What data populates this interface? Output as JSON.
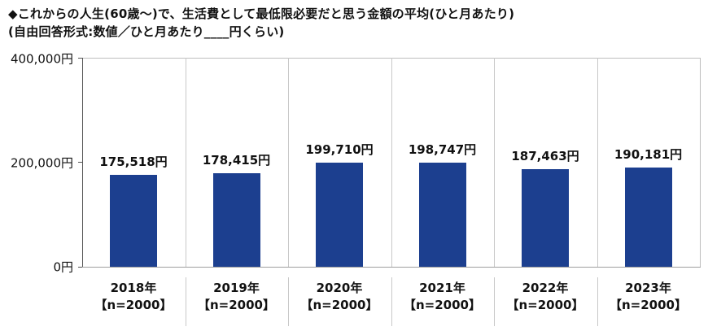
{
  "title_line1": "◆これからの人生(60歳～)で、生活費として最低限必要だと思う金額の平均(ひと月あたり)",
  "title_line2": "(自由回答形式:数値／ひと月あたり____円くらい)",
  "y_ticks": [
    "400,000円",
    "200,000円",
    "0円"
  ],
  "bar_color": "#1c3f8f",
  "categories": [
    {
      "year": "2018年",
      "n": "【n=2000】",
      "value_label": "175,518円",
      "value": 175518
    },
    {
      "year": "2019年",
      "n": "【n=2000】",
      "value_label": "178,415円",
      "value": 178415
    },
    {
      "year": "2020年",
      "n": "【n=2000】",
      "value_label": "199,710円",
      "value": 199710
    },
    {
      "year": "2021年",
      "n": "【n=2000】",
      "value_label": "198,747円",
      "value": 198747
    },
    {
      "year": "2022年",
      "n": "【n=2000】",
      "value_label": "187,463円",
      "value": 187463
    },
    {
      "year": "2023年",
      "n": "【n=2000】",
      "value_label": "190,181円",
      "value": 190181
    }
  ],
  "chart_data": {
    "type": "bar",
    "title": "◆これからの人生(60歳～)で、生活費として最低限必要だと思う金額の平均(ひと月あたり)",
    "subtitle": "(自由回答形式:数値／ひと月あたり____円くらい)",
    "categories": [
      "2018年【n=2000】",
      "2019年【n=2000】",
      "2020年【n=2000】",
      "2021年【n=2000】",
      "2022年【n=2000】",
      "2023年【n=2000】"
    ],
    "values": [
      175518,
      178415,
      199710,
      198747,
      187463,
      190181
    ],
    "data_labels": [
      "175,518円",
      "178,415円",
      "199,710円",
      "198,747円",
      "187,463円",
      "190,181円"
    ],
    "xlabel": "",
    "ylabel": "",
    "ylim": [
      0,
      400000
    ],
    "yticks": [
      0,
      200000,
      400000
    ],
    "ytick_labels": [
      "0円",
      "200,000円",
      "400,000円"
    ],
    "grid": false,
    "legend": null
  }
}
